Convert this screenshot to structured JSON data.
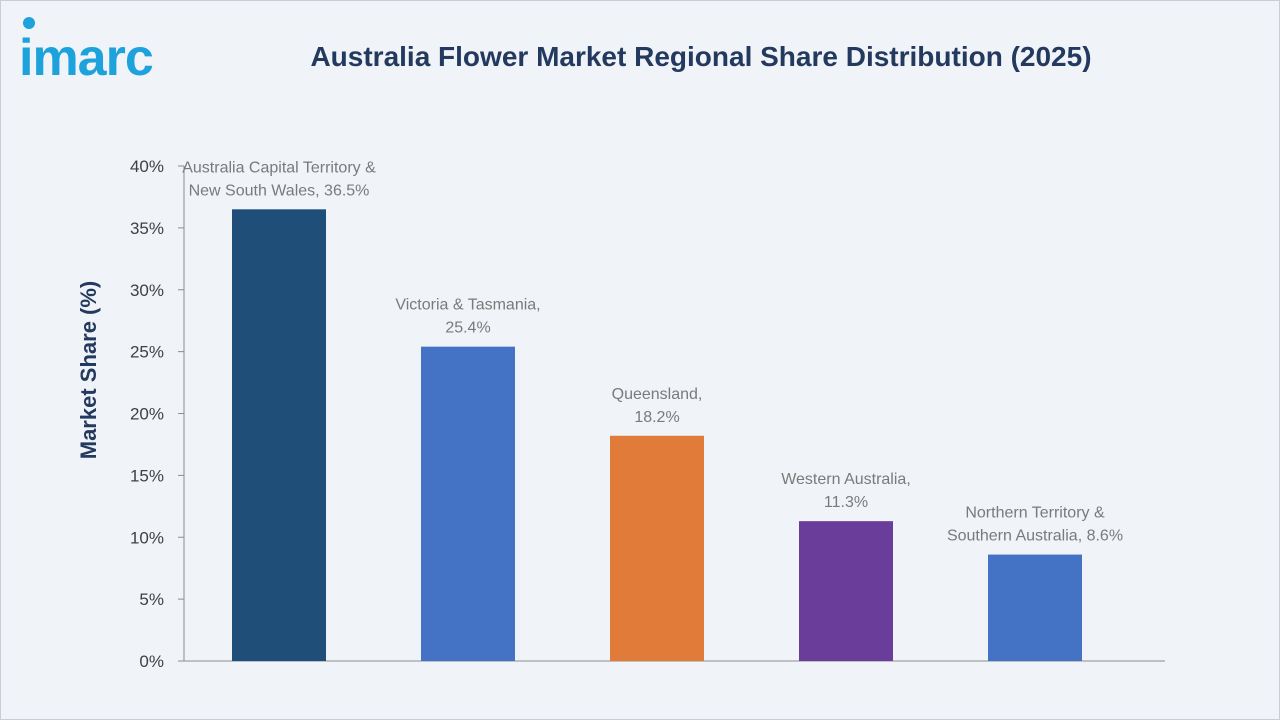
{
  "brand": {
    "name": "imarc",
    "color": "#1ea2dc"
  },
  "chart_data": {
    "type": "bar",
    "title": "Australia Flower Market Regional Share Distribution (2025)",
    "xlabel": "",
    "ylabel": "Market Share (%)",
    "ylim": [
      0,
      40
    ],
    "yticks": [
      {
        "value": 0,
        "label": "0%"
      },
      {
        "value": 5,
        "label": "5%"
      },
      {
        "value": 10,
        "label": "10%"
      },
      {
        "value": 15,
        "label": "15%"
      },
      {
        "value": 20,
        "label": "20%"
      },
      {
        "value": 25,
        "label": "25%"
      },
      {
        "value": 30,
        "label": "30%"
      },
      {
        "value": 35,
        "label": "35%"
      },
      {
        "value": 40,
        "label": "40%"
      }
    ],
    "grid": false,
    "legend": "none",
    "bars": [
      {
        "category": "Australia Capital Territory & New South Wales",
        "value": 36.5,
        "label_lines": [
          "Australia Capital Territory &",
          "New South Wales, 36.5%"
        ],
        "color": "#1f4e79"
      },
      {
        "category": "Victoria & Tasmania",
        "value": 25.4,
        "label_lines": [
          "Victoria & Tasmania,",
          "25.4%"
        ],
        "color": "#4472c4"
      },
      {
        "category": "Queensland",
        "value": 18.2,
        "label_lines": [
          "Queensland,",
          "18.2%"
        ],
        "color": "#e07b39"
      },
      {
        "category": "Western Australia",
        "value": 11.3,
        "label_lines": [
          "Western Australia,",
          "11.3%"
        ],
        "color": "#6a3d9a"
      },
      {
        "category": "Northern Territory & Southern Australia",
        "value": 8.6,
        "label_lines": [
          "Northern Territory &",
          "Southern Australia, 8.6%"
        ],
        "color": "#4472c4"
      }
    ]
  }
}
